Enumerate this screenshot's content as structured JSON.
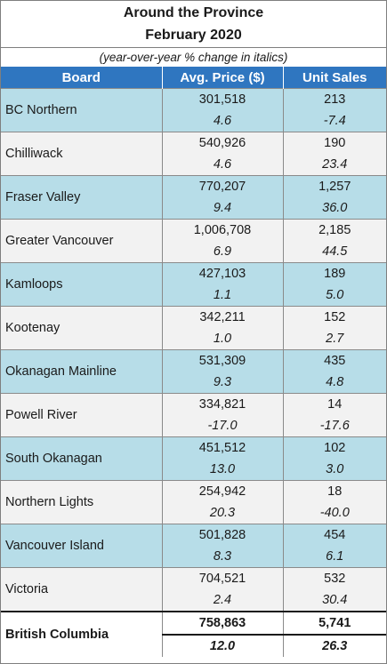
{
  "title": "Around the Province",
  "subtitle": "February 2020",
  "note": "(year-over-year % change in italics)",
  "headers": {
    "board": "Board",
    "price": "Avg. Price ($)",
    "sales": "Unit Sales"
  },
  "rows": [
    {
      "board": "BC Northern",
      "price": "301,518",
      "price_pct": "4.6",
      "sales": "213",
      "sales_pct": "-7.4"
    },
    {
      "board": "Chilliwack",
      "price": "540,926",
      "price_pct": "4.6",
      "sales": "190",
      "sales_pct": "23.4"
    },
    {
      "board": "Fraser Valley",
      "price": "770,207",
      "price_pct": "9.4",
      "sales": "1,257",
      "sales_pct": "36.0"
    },
    {
      "board": "Greater Vancouver",
      "price": "1,006,708",
      "price_pct": "6.9",
      "sales": "2,185",
      "sales_pct": "44.5"
    },
    {
      "board": "Kamloops",
      "price": "427,103",
      "price_pct": "1.1",
      "sales": "189",
      "sales_pct": "5.0"
    },
    {
      "board": "Kootenay",
      "price": "342,211",
      "price_pct": "1.0",
      "sales": "152",
      "sales_pct": "2.7"
    },
    {
      "board": "Okanagan Mainline",
      "price": "531,309",
      "price_pct": "9.3",
      "sales": "435",
      "sales_pct": "4.8"
    },
    {
      "board": "Powell River",
      "price": "334,821",
      "price_pct": "-17.0",
      "sales": "14",
      "sales_pct": "-17.6"
    },
    {
      "board": "South Okanagan",
      "price": "451,512",
      "price_pct": "13.0",
      "sales": "102",
      "sales_pct": "3.0"
    },
    {
      "board": "Northern Lights",
      "price": "254,942",
      "price_pct": "20.3",
      "sales": "18",
      "sales_pct": "-40.0"
    },
    {
      "board": "Vancouver Island",
      "price": "501,828",
      "price_pct": "8.3",
      "sales": "454",
      "sales_pct": "6.1"
    },
    {
      "board": "Victoria",
      "price": "704,521",
      "price_pct": "2.4",
      "sales": "532",
      "sales_pct": "30.4"
    }
  ],
  "total": {
    "board": "British Columbia",
    "price": "758,863",
    "price_pct": "12.0",
    "sales": "5,741",
    "sales_pct": "26.3"
  },
  "colors": {
    "header": "#2f76c0",
    "row_blue": "#b7dde8",
    "row_white": "#f2f2f2"
  }
}
